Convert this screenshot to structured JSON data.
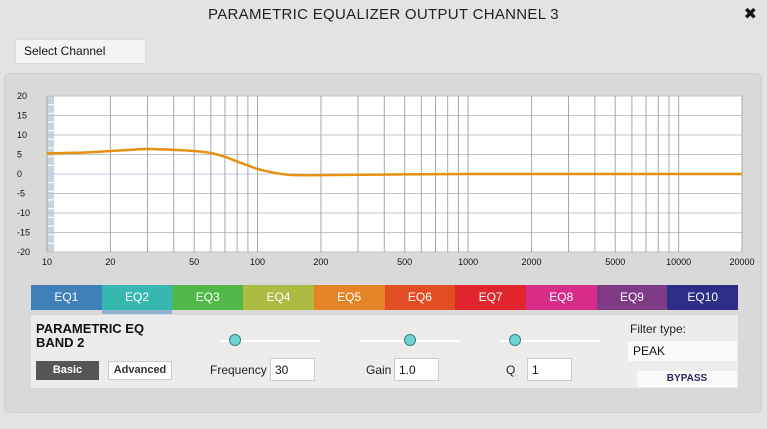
{
  "window": {
    "title": "PARAMETRIC EQUALIZER OUTPUT CHANNEL 3",
    "close_icon": "✖"
  },
  "toolbar": {
    "select_channel_label": "Select Channel"
  },
  "chart_data": {
    "type": "line",
    "x_scale": "log",
    "xlim": [
      10,
      20000
    ],
    "ylim": [
      -20,
      20
    ],
    "y_ticks": [
      "20",
      "15",
      "10",
      "5",
      "0",
      "-5",
      "-10",
      "-15",
      "-20"
    ],
    "x_ticks": [
      "10",
      "20",
      "50",
      "100",
      "200",
      "500",
      "1000",
      "2000",
      "5000",
      "10000",
      "20000"
    ],
    "grid": true,
    "line_color": "#e8900f",
    "series": [
      {
        "x": [
          10,
          15,
          20,
          25,
          30,
          40,
          50,
          60,
          70,
          80,
          90,
          100,
          120,
          140,
          160,
          200,
          300,
          500,
          1000,
          2000,
          5000,
          10000,
          20000
        ],
        "y": [
          5.3,
          5.5,
          5.9,
          6.2,
          6.4,
          6.2,
          5.9,
          5.4,
          4.4,
          3.2,
          2.2,
          1.3,
          0.3,
          -0.2,
          -0.3,
          -0.3,
          -0.2,
          -0.1,
          0.0,
          0.0,
          0.0,
          0.0,
          0.0
        ]
      }
    ]
  },
  "tabs": [
    {
      "label": "EQ1",
      "color": "#3f80b8"
    },
    {
      "label": "EQ2",
      "color": "#36b7b0"
    },
    {
      "label": "EQ3",
      "color": "#4fb848"
    },
    {
      "label": "EQ4",
      "color": "#aebb43"
    },
    {
      "label": "EQ5",
      "color": "#e58424"
    },
    {
      "label": "EQ6",
      "color": "#e24d24"
    },
    {
      "label": "EQ7",
      "color": "#e0262c"
    },
    {
      "label": "EQ8",
      "color": "#d72c88"
    },
    {
      "label": "EQ9",
      "color": "#7f3a86"
    },
    {
      "label": "EQ10",
      "color": "#2d2e88"
    }
  ],
  "active_tab": "EQ2",
  "band": {
    "title_line1": "PARAMETRIC EQ",
    "title_line2": "BAND 2",
    "basic_label": "Basic",
    "advanced_label": "Advanced",
    "frequency_label": "Frequency",
    "frequency_value": "30",
    "frequency_slider": 0.14,
    "gain_label": "Gain",
    "gain_value": "1.0",
    "gain_slider": 0.5,
    "q_label": "Q",
    "q_value": "1",
    "q_slider": 0.14,
    "filter_type_label": "Filter type:",
    "filter_type_value": "PEAK",
    "bypass_label": "BYPASS"
  }
}
